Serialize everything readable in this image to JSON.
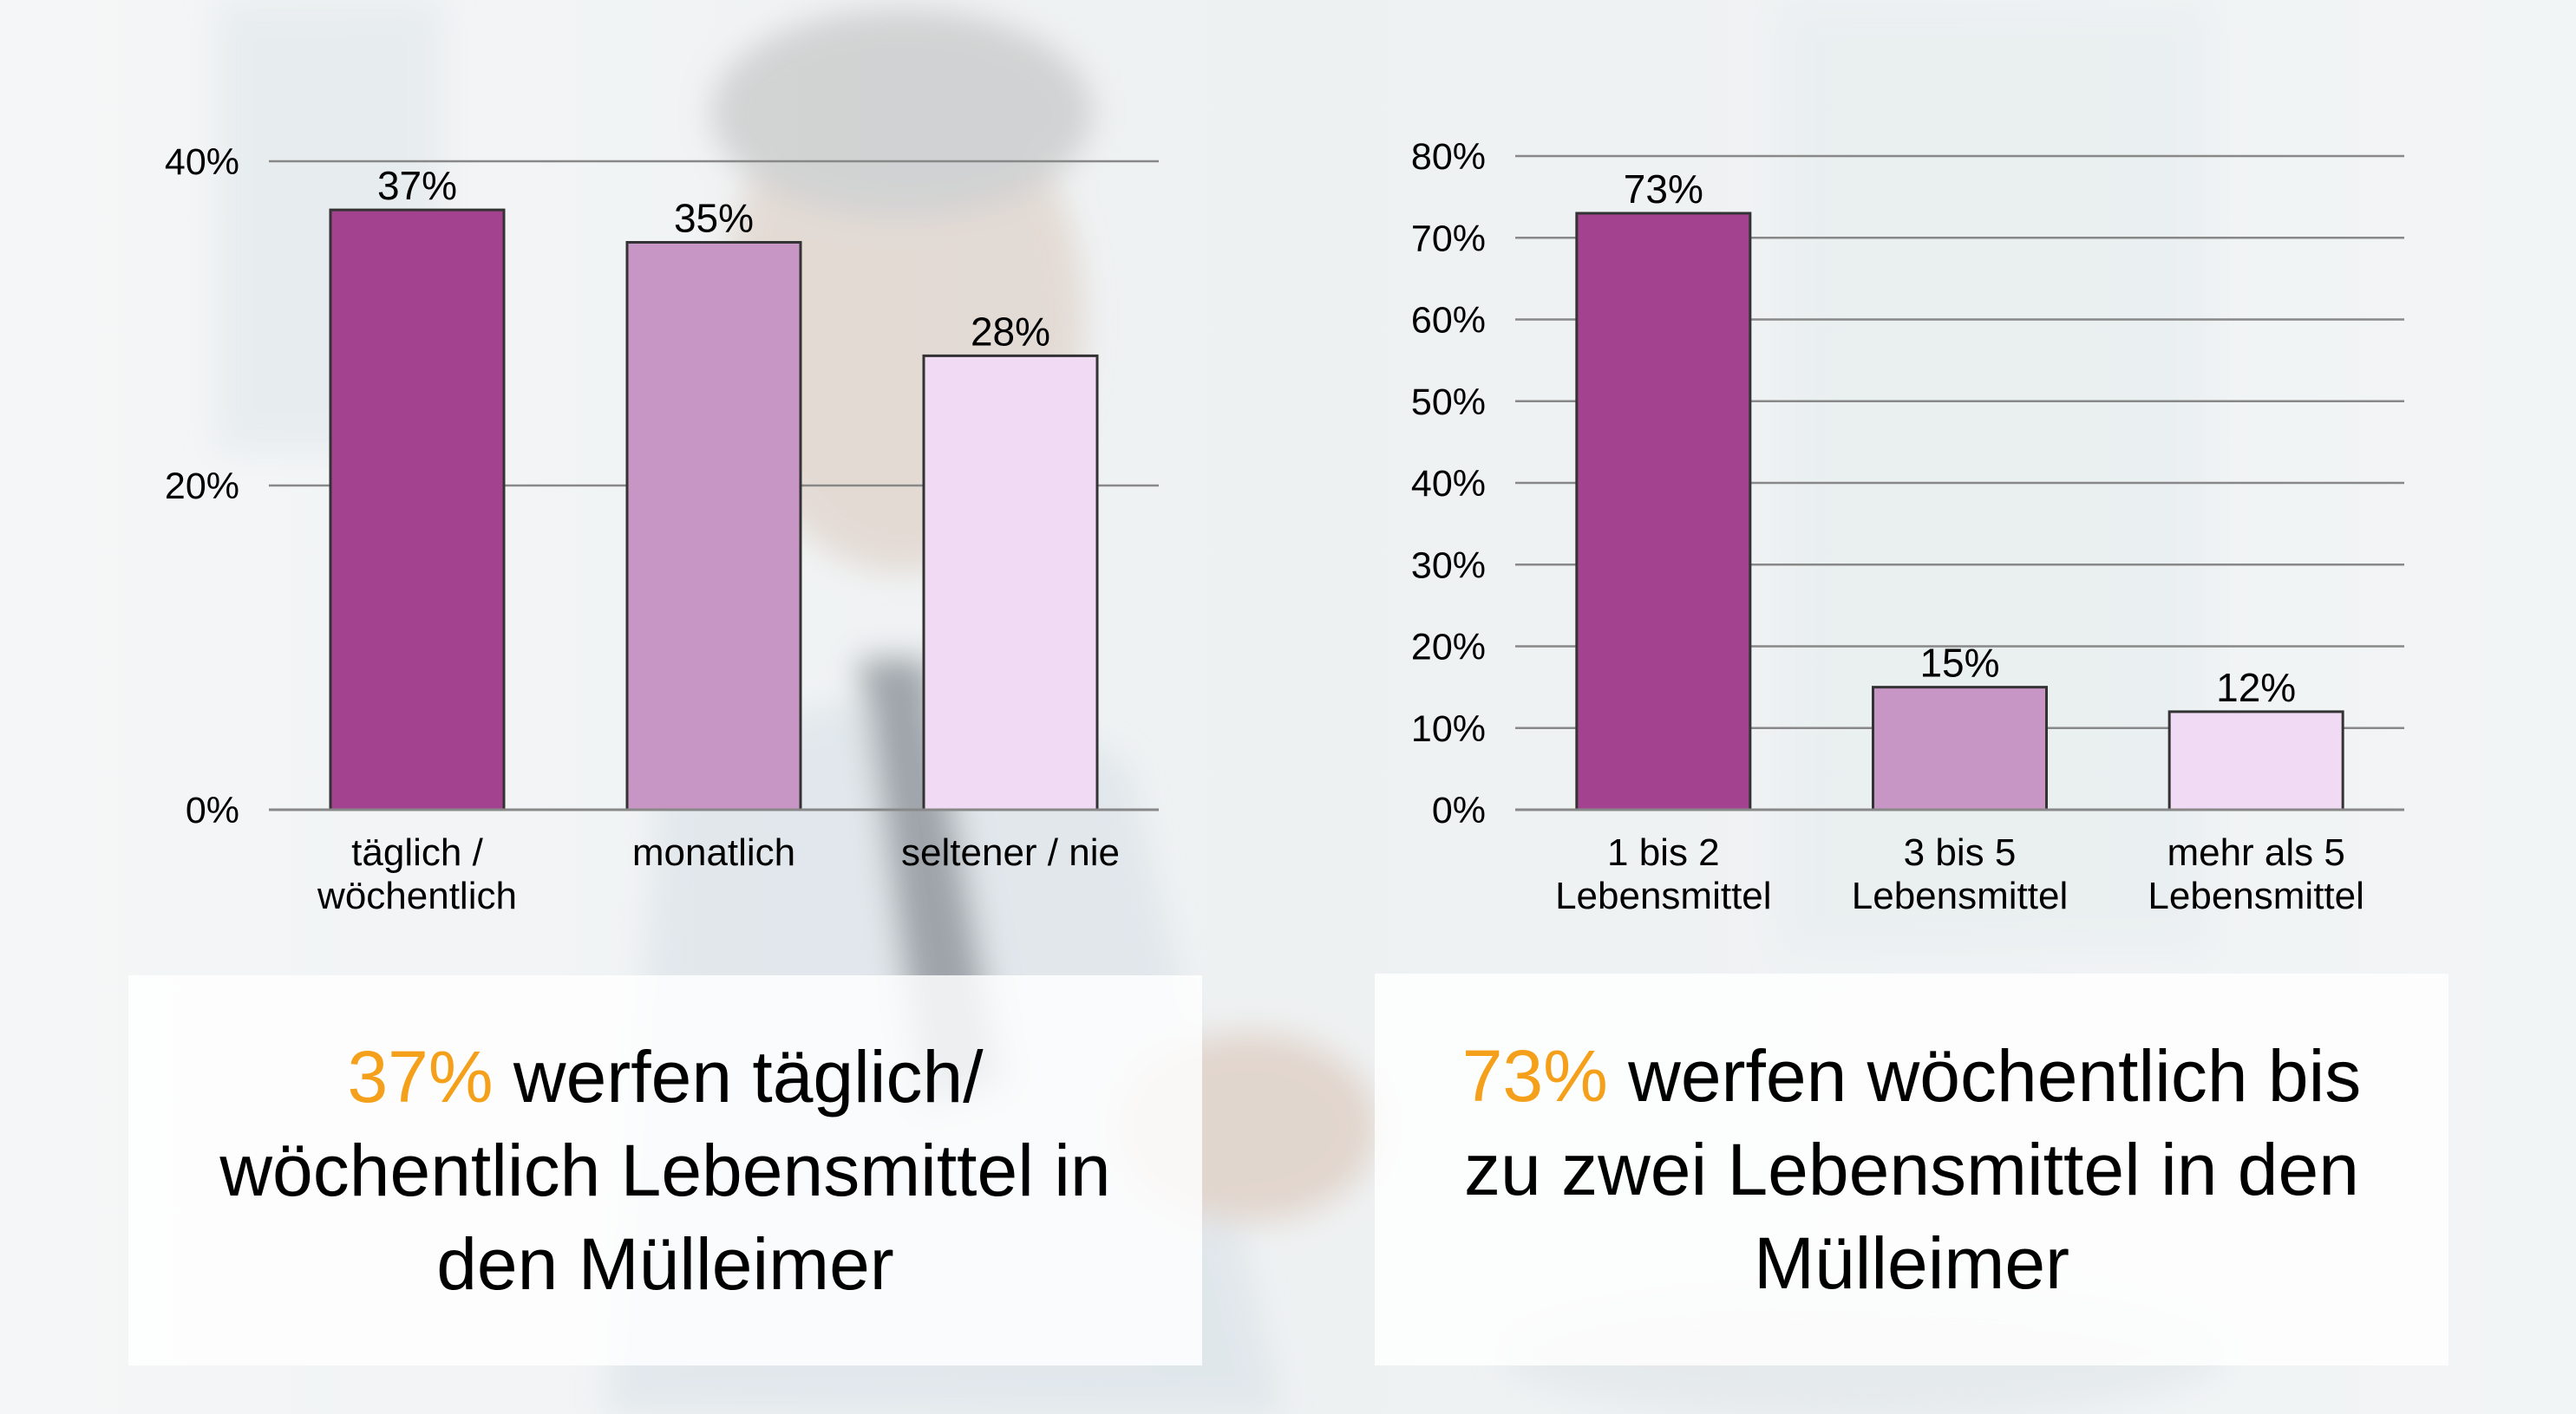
{
  "colors": {
    "bar_dark": "#a3428f",
    "bar_mid": "#c896c4",
    "bar_light": "#f1daf4",
    "highlight": "#f5a01a",
    "grid": "#888888",
    "text": "#000000"
  },
  "chart_data": [
    {
      "type": "bar",
      "title": "",
      "xlabel": "",
      "ylabel": "",
      "categories": [
        "täglich / wöchentlich",
        "monatlich",
        "seltener / nie"
      ],
      "category_lines": [
        [
          "täglich /",
          "wöchentlich"
        ],
        [
          "monatlich"
        ],
        [
          "seltener / nie"
        ]
      ],
      "values": [
        37,
        35,
        28
      ],
      "value_labels": [
        "37%",
        "35%",
        "28%"
      ],
      "ylim": [
        0,
        40
      ],
      "yticks": [
        0,
        20,
        40
      ],
      "ytick_labels": [
        "0%",
        "20%",
        "40%"
      ],
      "grid": true,
      "legend": "none"
    },
    {
      "type": "bar",
      "title": "",
      "xlabel": "",
      "ylabel": "",
      "categories": [
        "1 bis 2 Lebensmittel",
        "3 bis 5 Lebensmittel",
        "mehr als 5 Lebensmittel"
      ],
      "category_lines": [
        [
          "1 bis 2",
          "Lebensmittel"
        ],
        [
          "3 bis 5",
          "Lebensmittel"
        ],
        [
          "mehr als 5",
          "Lebensmittel"
        ]
      ],
      "values": [
        73,
        15,
        12
      ],
      "value_labels": [
        "73%",
        "15%",
        "12%"
      ],
      "ylim": [
        0,
        80
      ],
      "yticks": [
        0,
        10,
        20,
        30,
        40,
        50,
        60,
        70,
        80
      ],
      "ytick_labels": [
        "0%",
        "10%",
        "20%",
        "30%",
        "40%",
        "50%",
        "60%",
        "70%",
        "80%"
      ],
      "grid": true,
      "legend": "none"
    }
  ],
  "captions": {
    "left": {
      "highlight": "37%",
      "line1_rest": " werfen täglich/",
      "line2": "wöchentlich Lebensmittel in",
      "line3": "den Mülleimer"
    },
    "right": {
      "highlight": "73%",
      "line1_rest": " werfen wöchentlich bis",
      "line2": "zu zwei Lebensmittel in den",
      "line3": "Mülleimer"
    }
  }
}
